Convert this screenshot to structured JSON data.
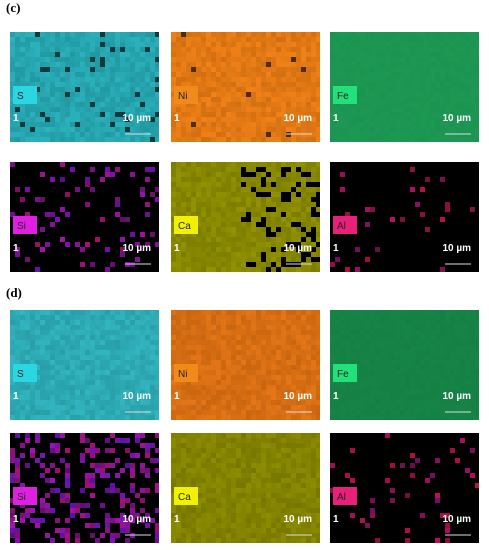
{
  "panels": [
    {
      "label": "(c)",
      "maps": [
        {
          "element": "S",
          "index": "1",
          "scale": "10 µm"
        },
        {
          "element": "Ni",
          "index": "1",
          "scale": "10 µm"
        },
        {
          "element": "Fe",
          "index": "1",
          "scale": "10 µm"
        },
        {
          "element": "Si",
          "index": "1",
          "scale": "10 µm"
        },
        {
          "element": "Ca",
          "index": "1",
          "scale": "10 µm"
        },
        {
          "element": "Al",
          "index": "1",
          "scale": "10 µm"
        }
      ]
    },
    {
      "label": "(d)",
      "maps": [
        {
          "element": "S",
          "index": "1",
          "scale": "10 µm"
        },
        {
          "element": "Ni",
          "index": "1",
          "scale": "10 µm"
        },
        {
          "element": "Fe",
          "index": "1",
          "scale": "10 µm"
        },
        {
          "element": "Si",
          "index": "1",
          "scale": "10 µm"
        },
        {
          "element": "Ca",
          "index": "1",
          "scale": "10 µm"
        },
        {
          "element": "Al",
          "index": "1",
          "scale": "10 µm"
        }
      ]
    }
  ]
}
